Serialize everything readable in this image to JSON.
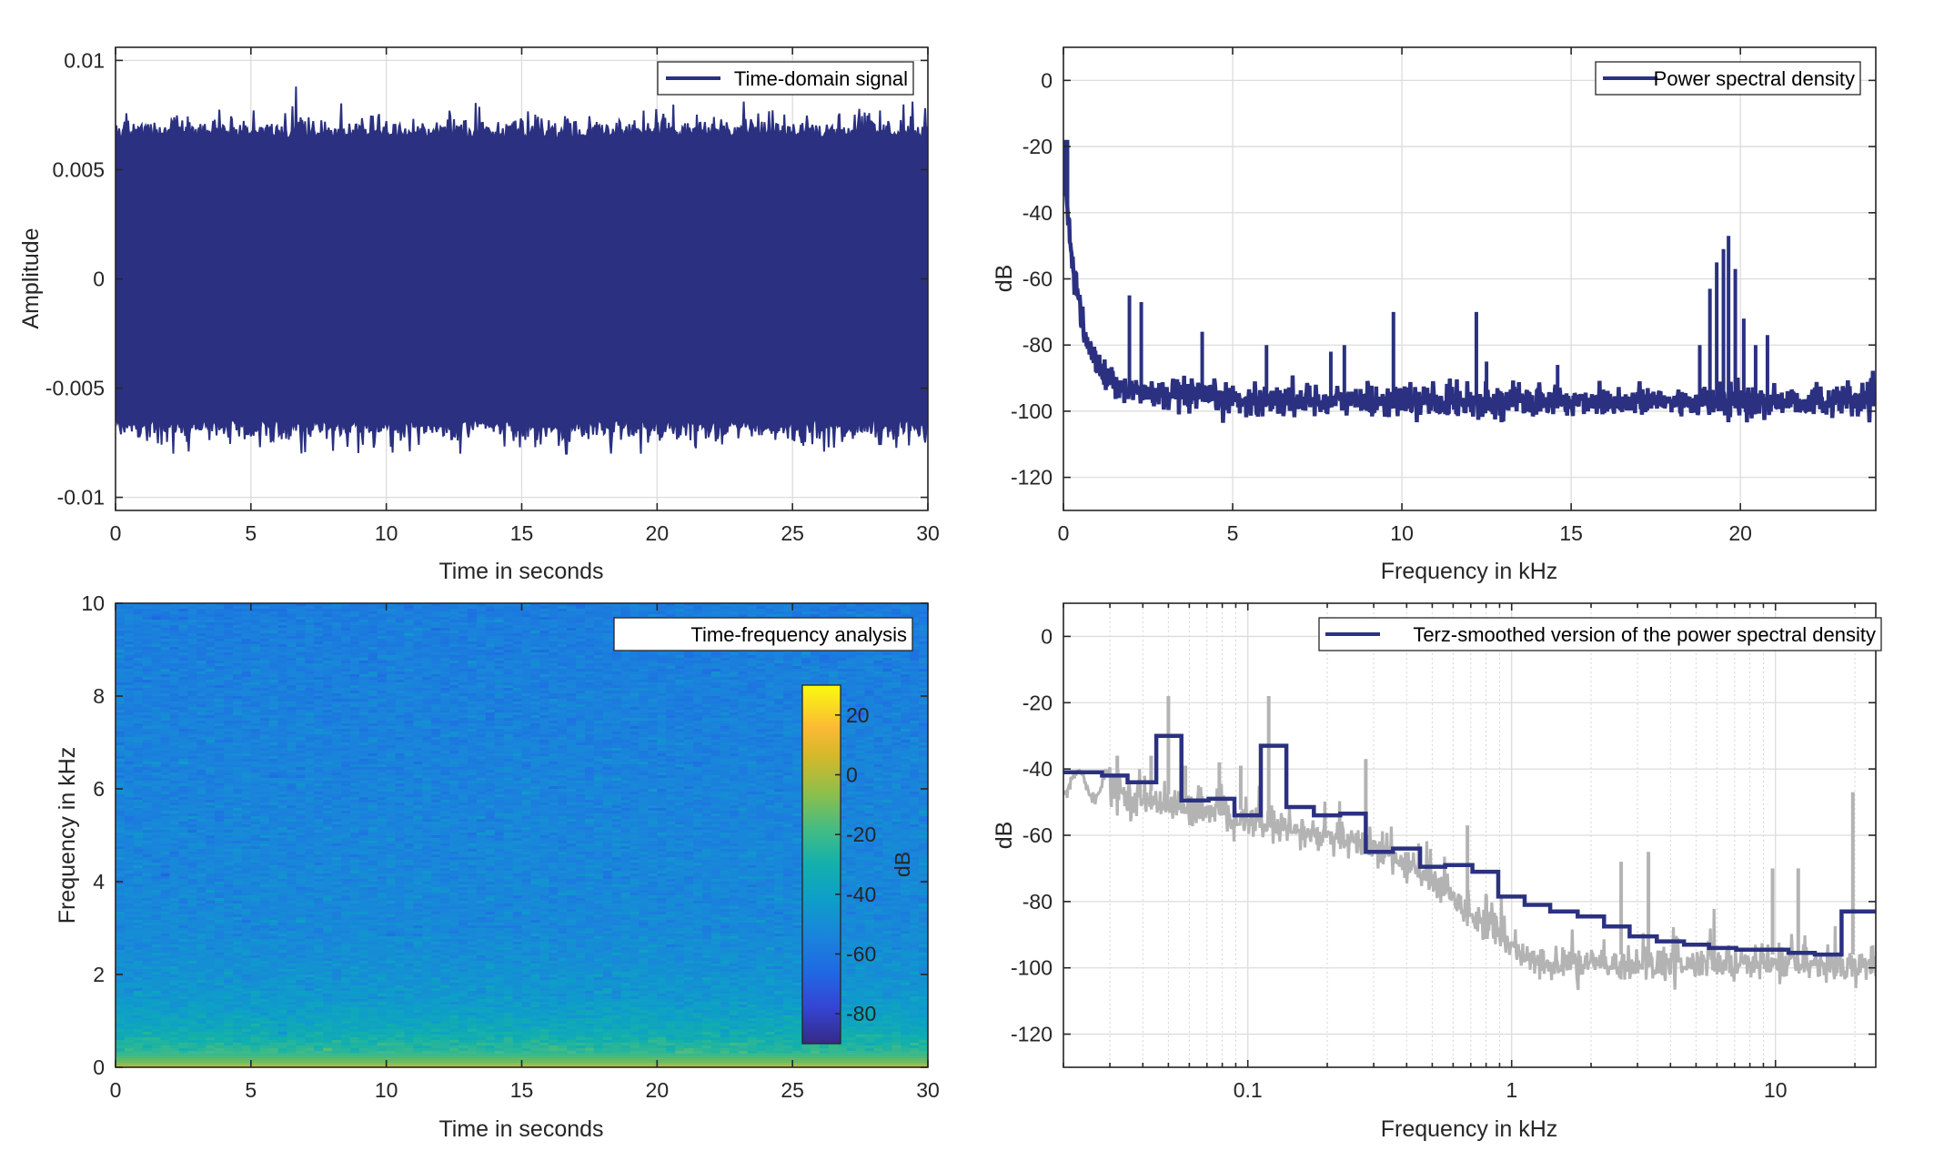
{
  "figure": {
    "colors": {
      "signal": "#2b3180",
      "psd_raw": "#b3b3b3",
      "grid": "#dcdcdc",
      "axis": "#262626"
    }
  },
  "chart_data": [
    {
      "id": "time-domain",
      "type": "line",
      "title": "",
      "legend": [
        "Time-domain signal"
      ],
      "legend_position": "top-right",
      "xlabel": "Time in seconds",
      "ylabel": "Amplitude",
      "xlim": [
        0,
        30
      ],
      "ylim": [
        -0.0106,
        0.0106
      ],
      "xticks": [
        0,
        5,
        10,
        15,
        20,
        25,
        30
      ],
      "xtick_labels": [
        "0",
        "5",
        "10",
        "15",
        "20",
        "25",
        "30"
      ],
      "yticks": [
        -0.01,
        -0.005,
        0,
        0.005,
        0.01
      ],
      "ytick_labels": [
        "-0.01",
        "-0.005",
        "0",
        "0.005",
        "0.01"
      ],
      "grid": true,
      "series": [
        {
          "name": "Time-domain signal",
          "description": "dense noise-like signal, envelope roughly ±0.006 to ±0.007",
          "duration_s": 30,
          "typical_envelope": 0.0064,
          "max_peak": 0.0088,
          "min_peak": -0.008
        }
      ]
    },
    {
      "id": "psd",
      "type": "line",
      "title": "",
      "legend": [
        "Power spectral density"
      ],
      "legend_position": "top-right",
      "xlabel": "Frequency in kHz",
      "ylabel": "dB",
      "xlim": [
        0,
        24
      ],
      "ylim": [
        -130,
        10
      ],
      "xticks": [
        0,
        5,
        10,
        15,
        20
      ],
      "xtick_labels": [
        "0",
        "5",
        "10",
        "15",
        "20"
      ],
      "yticks": [
        -120,
        -100,
        -80,
        -60,
        -40,
        -20,
        0
      ],
      "ytick_labels": [
        "-120",
        "-100",
        "-80",
        "-60",
        "-40",
        "-20",
        "0"
      ],
      "grid": true,
      "series": [
        {
          "name": "Power spectral density",
          "noise_floor_db": -97,
          "low_freq_start_db": -30,
          "peaks": [
            {
              "f_khz": 0.05,
              "db": -18
            },
            {
              "f_khz": 0.12,
              "db": -18
            },
            {
              "f_khz": 0.3,
              "db": -57
            },
            {
              "f_khz": 1.95,
              "db": -65
            },
            {
              "f_khz": 2.3,
              "db": -67
            },
            {
              "f_khz": 4.1,
              "db": -76
            },
            {
              "f_khz": 6.0,
              "db": -80
            },
            {
              "f_khz": 7.9,
              "db": -82
            },
            {
              "f_khz": 8.3,
              "db": -80
            },
            {
              "f_khz": 9.75,
              "db": -70
            },
            {
              "f_khz": 12.2,
              "db": -70
            },
            {
              "f_khz": 12.5,
              "db": -85
            },
            {
              "f_khz": 14.6,
              "db": -86
            },
            {
              "f_khz": 18.8,
              "db": -80
            },
            {
              "f_khz": 19.1,
              "db": -63
            },
            {
              "f_khz": 19.3,
              "db": -55
            },
            {
              "f_khz": 19.5,
              "db": -51
            },
            {
              "f_khz": 19.65,
              "db": -47
            },
            {
              "f_khz": 19.85,
              "db": -57
            },
            {
              "f_khz": 20.1,
              "db": -72
            },
            {
              "f_khz": 20.45,
              "db": -80
            },
            {
              "f_khz": 20.8,
              "db": -77
            }
          ]
        }
      ]
    },
    {
      "id": "spectrogram",
      "type": "heatmap",
      "title": "",
      "legend": [
        "Time-frequency analysis"
      ],
      "legend_position": "top-right",
      "xlabel": "Time in seconds",
      "ylabel": "Frequency in kHz",
      "xlim": [
        0,
        30
      ],
      "ylim": [
        0,
        10
      ],
      "xticks": [
        0,
        5,
        10,
        15,
        20,
        25,
        30
      ],
      "xtick_labels": [
        "0",
        "5",
        "10",
        "15",
        "20",
        "25",
        "30"
      ],
      "yticks": [
        0,
        2,
        4,
        6,
        8,
        10
      ],
      "ytick_labels": [
        "0",
        "2",
        "4",
        "6",
        "8",
        "10"
      ],
      "colormap": "parula",
      "colorbar": {
        "label": "dB",
        "range": [
          -90,
          30
        ],
        "ticks": [
          -80,
          -60,
          -40,
          -20,
          0,
          20
        ],
        "tick_labels": [
          "-80",
          "-60",
          "-40",
          "-20",
          "0",
          "20"
        ]
      },
      "level_profile_db": [
        {
          "f_khz": 0.0,
          "db": 5
        },
        {
          "f_khz": 0.1,
          "db": -10
        },
        {
          "f_khz": 0.3,
          "db": -22
        },
        {
          "f_khz": 0.8,
          "db": -35
        },
        {
          "f_khz": 1.5,
          "db": -45
        },
        {
          "f_khz": 3.0,
          "db": -52
        },
        {
          "f_khz": 10.0,
          "db": -57
        }
      ]
    },
    {
      "id": "terz",
      "type": "line",
      "title": "",
      "legend": [
        "Terz-smoothed version of the power spectral density"
      ],
      "legend_position": "top-right",
      "xlabel": "Frequency in kHz",
      "ylabel": "dB",
      "xscale": "log",
      "xlim": [
        0.02,
        24
      ],
      "ylim": [
        -130,
        10
      ],
      "xticks": [
        0.1,
        1,
        10
      ],
      "xtick_labels": [
        "0.1",
        "1",
        "10"
      ],
      "yticks": [
        -120,
        -100,
        -80,
        -60,
        -40,
        -20,
        0
      ],
      "ytick_labels": [
        "-120",
        "-100",
        "-80",
        "-60",
        "-40",
        "-20",
        "0"
      ],
      "grid": true,
      "series": [
        {
          "name": "Terz-smoothed version of the power spectral density",
          "step_edges_khz": [
            0.02,
            0.028,
            0.035,
            0.045,
            0.056,
            0.071,
            0.089,
            0.112,
            0.14,
            0.178,
            0.224,
            0.28,
            0.355,
            0.45,
            0.56,
            0.71,
            0.89,
            1.12,
            1.4,
            1.78,
            2.24,
            2.8,
            3.55,
            4.5,
            5.6,
            7.1,
            11.2,
            14.1,
            17.8,
            24
          ],
          "step_values_db": [
            -41,
            -42,
            -44,
            -30,
            -49.5,
            -49,
            -54,
            -33,
            -51.5,
            -54,
            -53.5,
            -65,
            -64,
            -69.5,
            -69,
            -71,
            -78.5,
            -81,
            -83,
            -84.5,
            -87.5,
            -90.5,
            -92,
            -93,
            -94,
            -94.5,
            -95.5,
            -96,
            -83
          ]
        },
        {
          "name": "Power spectral density (raw, grey)",
          "peaks": [
            {
              "f_khz": 0.05,
              "db": -18
            },
            {
              "f_khz": 0.12,
              "db": -18
            },
            {
              "f_khz": 0.032,
              "db": -36
            },
            {
              "f_khz": 0.043,
              "db": -36
            },
            {
              "f_khz": 0.058,
              "db": -39
            },
            {
              "f_khz": 0.078,
              "db": -38
            },
            {
              "f_khz": 0.094,
              "db": -39
            },
            {
              "f_khz": 0.28,
              "db": -37
            },
            {
              "f_khz": 0.68,
              "db": -57
            },
            {
              "f_khz": 2.6,
              "db": -68
            },
            {
              "f_khz": 3.3,
              "db": -65
            },
            {
              "f_khz": 9.75,
              "db": -70
            },
            {
              "f_khz": 12.2,
              "db": -70
            },
            {
              "f_khz": 19.65,
              "db": -47
            }
          ]
        }
      ]
    }
  ]
}
